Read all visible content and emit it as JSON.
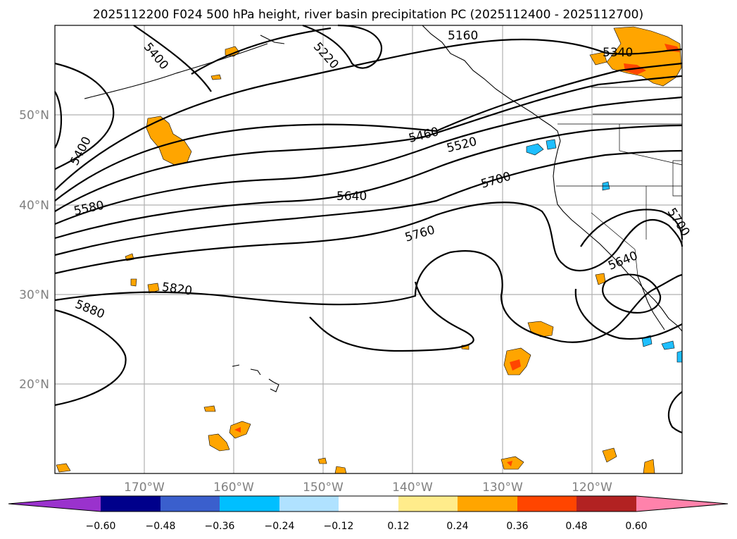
{
  "title": "2025112200 F024 500 hPa height, river basin precipitation PC (2025112400 - 2025112700)",
  "lat_labels": [
    "50°N",
    "40°N",
    "30°N",
    "20°N"
  ],
  "lon_labels": [
    "170°W",
    "160°W",
    "150°W",
    "140°W",
    "130°W",
    "120°W"
  ],
  "contour_labels": [
    "5400",
    "5220",
    "5340",
    "5400",
    "5460",
    "5520",
    "5580",
    "5640",
    "5700",
    "5760",
    "5820",
    "5880",
    "5640",
    "5700",
    "5160"
  ],
  "colorbar": {
    "ticks": [
      "−0.60",
      "−0.48",
      "−0.36",
      "−0.24",
      "−0.12",
      "0.12",
      "0.24",
      "0.36",
      "0.48",
      "0.60"
    ],
    "colors": [
      "#9a32cd",
      "#00008b",
      "#3a5fcd",
      "#00bfff",
      "#b0e2ff",
      "#ffffff",
      "#ffec8b",
      "#ffa500",
      "#ff4500",
      "#b22222",
      "#ff82ab"
    ]
  }
}
